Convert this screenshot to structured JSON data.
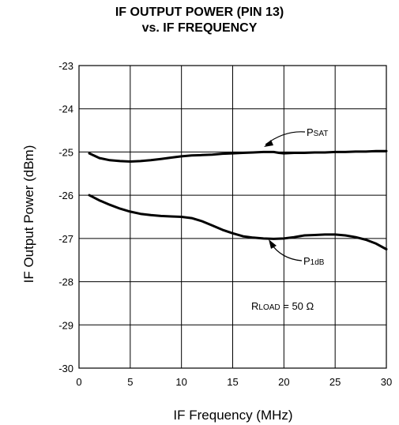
{
  "chart_data": {
    "type": "line",
    "title_line1": "IF OUTPUT POWER (PIN 13)",
    "title_line2": "vs. IF FREQUENCY",
    "xlabel": "IF Frequency (MHz)",
    "ylabel": "IF  Output Power  (dBm)",
    "xlim": [
      0,
      30
    ],
    "ylim": [
      -30,
      -23
    ],
    "xticks": [
      0,
      5,
      10,
      15,
      20,
      25,
      30
    ],
    "yticks": [
      -23,
      -24,
      -25,
      -26,
      -27,
      -28,
      -29,
      -30
    ],
    "grid": true,
    "series": [
      {
        "name": "PSAT",
        "x": [
          1,
          2,
          3,
          4,
          5,
          6,
          7,
          8,
          9,
          10,
          11,
          12,
          13,
          14,
          15,
          16,
          17,
          18,
          19,
          19.5,
          20,
          21,
          22,
          23,
          24,
          25,
          26,
          27,
          28,
          29,
          30
        ],
        "y": [
          -25.03,
          -25.14,
          -25.19,
          -25.21,
          -25.22,
          -25.21,
          -25.19,
          -25.16,
          -25.13,
          -25.1,
          -25.08,
          -25.07,
          -25.06,
          -25.04,
          -25.03,
          -25.02,
          -25.01,
          -25.0,
          -25.0,
          -25.02,
          -25.03,
          -25.02,
          -25.02,
          -25.01,
          -25.01,
          -25.0,
          -25.0,
          -24.99,
          -24.99,
          -24.98,
          -24.98
        ]
      },
      {
        "name": "P1dB",
        "x": [
          1,
          2,
          3,
          4,
          5,
          6,
          7,
          8,
          9,
          10,
          11,
          12,
          13,
          14,
          15,
          16,
          17,
          18,
          19,
          20,
          21,
          22,
          23,
          24,
          25,
          26,
          27,
          28,
          29,
          30
        ],
        "y": [
          -26.0,
          -26.12,
          -26.22,
          -26.31,
          -26.38,
          -26.43,
          -26.46,
          -26.48,
          -26.49,
          -26.5,
          -26.53,
          -26.6,
          -26.7,
          -26.8,
          -26.88,
          -26.95,
          -26.98,
          -27.0,
          -27.01,
          -27.0,
          -26.97,
          -26.93,
          -26.92,
          -26.91,
          -26.91,
          -26.93,
          -26.97,
          -27.03,
          -27.12,
          -27.25
        ]
      }
    ],
    "annotations": {
      "psat": {
        "main": "P",
        "sub": "SAT"
      },
      "p1db": {
        "main": "P",
        "sub": "1dB"
      },
      "rload": {
        "main": "R",
        "sub": "LOAD",
        "rest": " = 50 Ω"
      }
    }
  }
}
